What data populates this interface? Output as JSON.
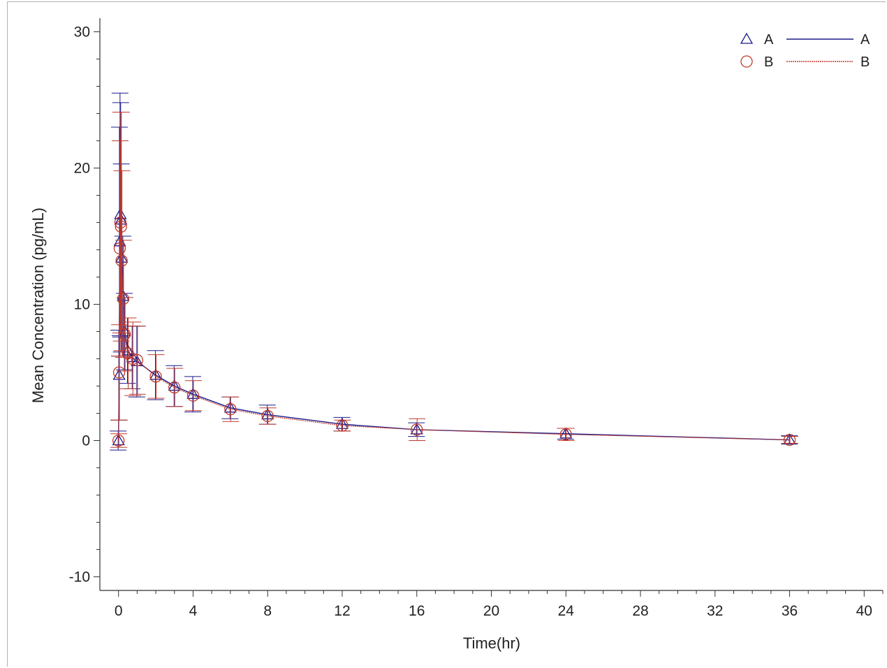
{
  "chart_data": {
    "type": "line",
    "xlabel": "Time(hr)",
    "ylabel": "Mean Concentration (pg/mL)",
    "xlim": [
      -1,
      41
    ],
    "ylim": [
      -11,
      31
    ],
    "x_ticks": [
      0,
      4,
      8,
      12,
      16,
      20,
      24,
      28,
      32,
      36,
      40
    ],
    "x_minor_step": 1,
    "y_ticks": [
      -10,
      0,
      10,
      20,
      30
    ],
    "y_minor_step": 2,
    "legend_position": "top-right",
    "series": [
      {
        "name": "A",
        "color": "#1a1a8c",
        "marker": "triangle",
        "points": [
          {
            "x": 0,
            "y": 0,
            "sd": 0.7
          },
          {
            "x": 0.0333,
            "y": 4.8,
            "sd": 3.3
          },
          {
            "x": 0.0667,
            "y": 14.6,
            "sd": 8.4
          },
          {
            "x": 0.1,
            "y": 16.6,
            "sd": 8.9
          },
          {
            "x": 0.1333,
            "y": 16.2,
            "sd": 8.6
          },
          {
            "x": 0.1667,
            "y": 13.4,
            "sd": 6.9
          },
          {
            "x": 0.25,
            "y": 10.6,
            "sd": 4.4
          },
          {
            "x": 0.3333,
            "y": 8.0,
            "sd": 2.8
          },
          {
            "x": 0.5,
            "y": 6.6,
            "sd": 2.4
          },
          {
            "x": 0.75,
            "y": 6.1,
            "sd": 2.3
          },
          {
            "x": 1,
            "y": 5.8,
            "sd": 2.6
          },
          {
            "x": 2,
            "y": 4.8,
            "sd": 1.8
          },
          {
            "x": 3,
            "y": 4.0,
            "sd": 1.5
          },
          {
            "x": 4,
            "y": 3.4,
            "sd": 1.3
          },
          {
            "x": 6,
            "y": 2.4,
            "sd": 0.8
          },
          {
            "x": 8,
            "y": 1.9,
            "sd": 0.7
          },
          {
            "x": 12,
            "y": 1.2,
            "sd": 0.5
          },
          {
            "x": 16,
            "y": 0.8,
            "sd": 0.5
          },
          {
            "x": 24,
            "y": 0.5,
            "sd": 0.4
          },
          {
            "x": 36,
            "y": 0.05,
            "sd": 0.3
          }
        ]
      },
      {
        "name": "B",
        "color": "#c0392b",
        "marker": "circle",
        "points": [
          {
            "x": 0,
            "y": 0,
            "sd": 0.5
          },
          {
            "x": 0.0333,
            "y": 5.0,
            "sd": 3.5
          },
          {
            "x": 0.0667,
            "y": 14.1,
            "sd": 7.9
          },
          {
            "x": 0.1,
            "y": 16.0,
            "sd": 8.1
          },
          {
            "x": 0.1333,
            "y": 15.7,
            "sd": 8.4
          },
          {
            "x": 0.1667,
            "y": 13.2,
            "sd": 6.6
          },
          {
            "x": 0.25,
            "y": 10.4,
            "sd": 4.3
          },
          {
            "x": 0.3333,
            "y": 7.8,
            "sd": 2.7
          },
          {
            "x": 0.5,
            "y": 6.4,
            "sd": 2.6
          },
          {
            "x": 0.75,
            "y": 6.0,
            "sd": 2.7
          },
          {
            "x": 1,
            "y": 5.9,
            "sd": 2.5
          },
          {
            "x": 2,
            "y": 4.7,
            "sd": 1.6
          },
          {
            "x": 3,
            "y": 3.9,
            "sd": 1.4
          },
          {
            "x": 4,
            "y": 3.3,
            "sd": 1.1
          },
          {
            "x": 6,
            "y": 2.3,
            "sd": 0.9
          },
          {
            "x": 8,
            "y": 1.8,
            "sd": 0.6
          },
          {
            "x": 12,
            "y": 1.1,
            "sd": 0.4
          },
          {
            "x": 16,
            "y": 0.8,
            "sd": 0.8
          },
          {
            "x": 24,
            "y": 0.45,
            "sd": 0.45
          },
          {
            "x": 36,
            "y": 0.05,
            "sd": 0.25
          }
        ]
      }
    ]
  }
}
